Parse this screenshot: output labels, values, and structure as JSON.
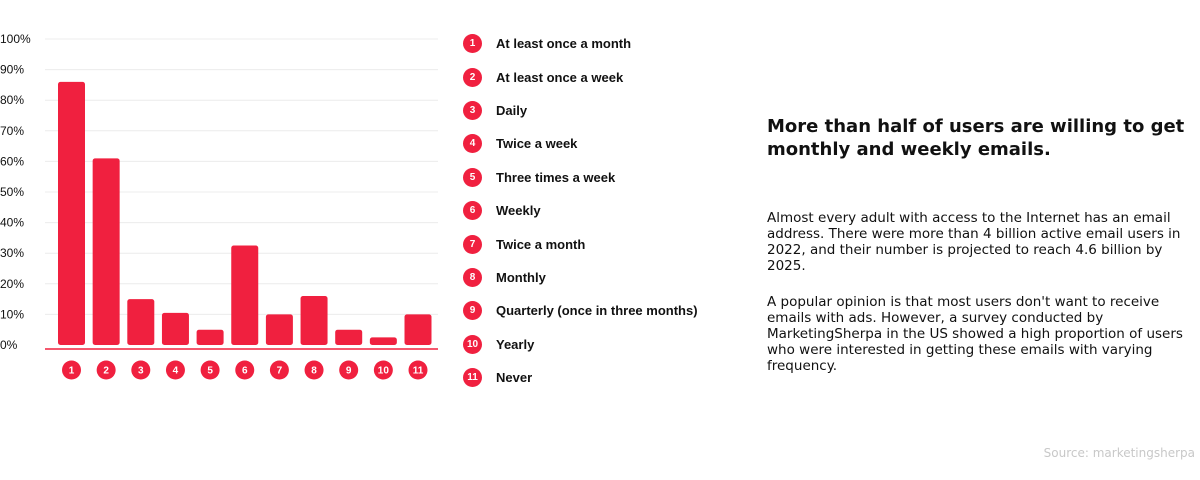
{
  "chart_data": {
    "type": "bar",
    "categories": [
      "1",
      "2",
      "3",
      "4",
      "5",
      "6",
      "7",
      "8",
      "9",
      "10",
      "11"
    ],
    "values": [
      86,
      61,
      15,
      10.5,
      5,
      32.5,
      10,
      16,
      5,
      2.5,
      10
    ],
    "ylim": [
      0,
      100
    ],
    "y_ticks": [
      "0%",
      "10%",
      "20%",
      "30%",
      "40%",
      "50%",
      "60%",
      "70%",
      "80%",
      "90%",
      "100%"
    ],
    "grid": true,
    "bar_color": "#f0203f",
    "legend": [
      {
        "num": "1",
        "label": "At least once a month"
      },
      {
        "num": "2",
        "label": "At least once a week"
      },
      {
        "num": "3",
        "label": "Daily"
      },
      {
        "num": "4",
        "label": "Twice a week"
      },
      {
        "num": "5",
        "label": "Three times a week"
      },
      {
        "num": "6",
        "label": "Weekly"
      },
      {
        "num": "7",
        "label": "Twice a month"
      },
      {
        "num": "8",
        "label": "Monthly"
      },
      {
        "num": "9",
        "label": "Quarterly (once in three months)"
      },
      {
        "num": "10",
        "label": "Yearly"
      },
      {
        "num": "11",
        "label": "Never"
      }
    ]
  },
  "headline": "More than half of users are willing to get monthly and weekly emails.",
  "paragraphs": [
    "Almost every adult with access to the Internet has an email address. There were more than 4 billion active email users in 2022, and their number is projected to reach 4.6 billion by 2025.",
    "A popular opinion is that most users don't want to receive emails with ads. However, a survey conducted by MarketingSherpa in the US showed a high proportion of users who were interested in getting these emails with varying frequency."
  ],
  "source": "Source: marketingsherpa"
}
